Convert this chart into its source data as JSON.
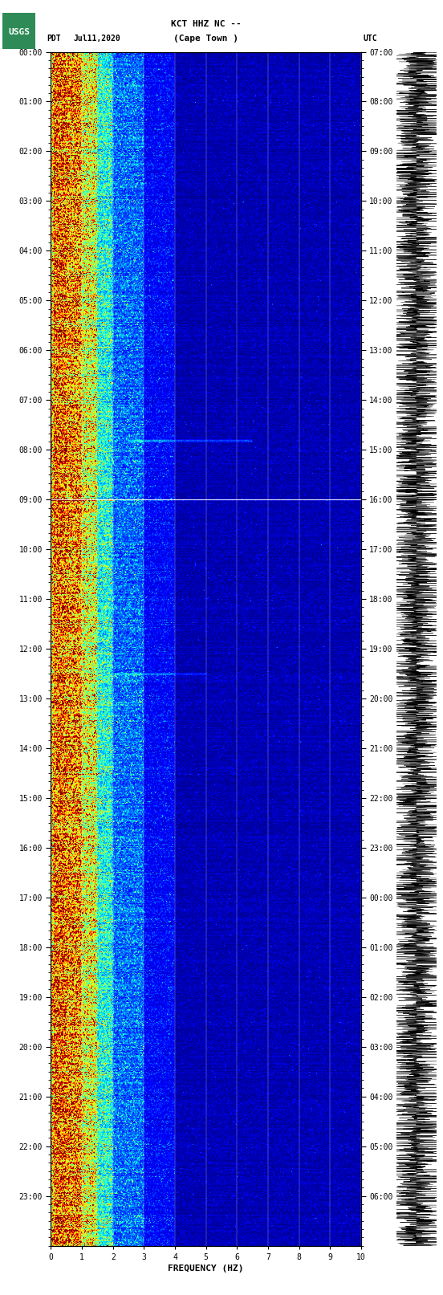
{
  "title_line1": "KCT HHZ NC --",
  "title_line2": "(Cape Town )",
  "left_label": "PDT",
  "date_label": "Jul11,2020",
  "right_label": "UTC",
  "xlabel": "FREQUENCY (HZ)",
  "freq_min": 0,
  "freq_max": 10,
  "freq_ticks": [
    0,
    1,
    2,
    3,
    4,
    5,
    6,
    7,
    8,
    9,
    10
  ],
  "time_hours": 24,
  "left_time_labels": [
    "00:00",
    "01:00",
    "02:00",
    "03:00",
    "04:00",
    "05:00",
    "06:00",
    "07:00",
    "08:00",
    "09:00",
    "10:00",
    "11:00",
    "12:00",
    "13:00",
    "14:00",
    "15:00",
    "16:00",
    "17:00",
    "18:00",
    "19:00",
    "20:00",
    "21:00",
    "22:00",
    "23:00"
  ],
  "right_time_labels": [
    "07:00",
    "08:00",
    "09:00",
    "10:00",
    "11:00",
    "12:00",
    "13:00",
    "14:00",
    "15:00",
    "16:00",
    "17:00",
    "18:00",
    "19:00",
    "20:00",
    "21:00",
    "22:00",
    "23:00",
    "00:00",
    "01:00",
    "02:00",
    "03:00",
    "04:00",
    "05:00",
    "06:00"
  ],
  "horizontal_line_hour": 9,
  "bg_color": "#ffffff",
  "colormap": "jet",
  "usgs_logo_color": "#2e8b57",
  "font_color": "#000000",
  "title_fontsize": 8,
  "tick_fontsize": 7,
  "label_fontsize": 8,
  "fig_width": 5.52,
  "fig_height": 16.13,
  "dpi": 100
}
